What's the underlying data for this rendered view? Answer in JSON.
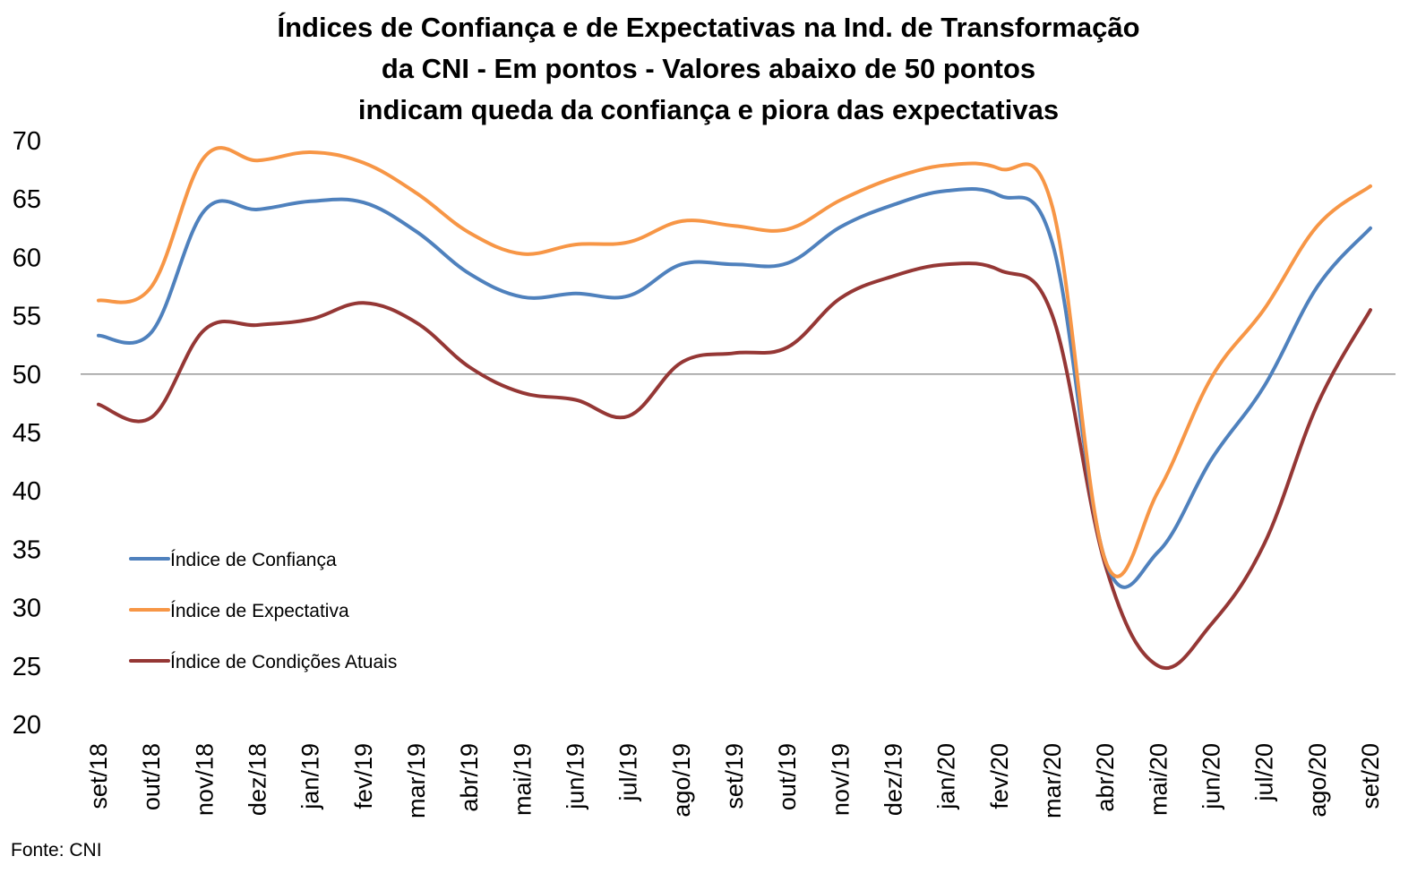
{
  "title_lines": [
    "Índices de Confiança e de Expectativas na Ind. de Transformação",
    "da CNI - Em pontos - Valores abaixo de 50 pontos",
    "indicam queda da confiança e piora das expectativas"
  ],
  "source": "Fonte: CNI",
  "chart_data": {
    "type": "line",
    "title": "Índices de Confiança e de Expectativas na Ind. de Transformação da CNI - Em pontos - Valores abaixo de 50 pontos indicam queda da confiança e piora das expectativas",
    "categories": [
      "set/18",
      "out/18",
      "nov/18",
      "dez/18",
      "jan/19",
      "fev/19",
      "mar/19",
      "abr/19",
      "mai/19",
      "jun/19",
      "jul/19",
      "ago/19",
      "set/19",
      "out/19",
      "nov/19",
      "dez/19",
      "jan/20",
      "fev/20",
      "mar/20",
      "abr/20",
      "mai/20",
      "jun/20",
      "jul/20",
      "ago/20",
      "set/20"
    ],
    "ylim": [
      20,
      70
    ],
    "yticks": [
      20,
      25,
      30,
      35,
      40,
      45,
      50,
      55,
      60,
      65,
      70
    ],
    "reference_line": 50,
    "grid": false,
    "legend_position": "left",
    "series": [
      {
        "name": "Índice de Confiança",
        "color": "#4F81BD",
        "values": [
          53.3,
          53.6,
          64.0,
          64.1,
          64.8,
          64.7,
          62.2,
          58.6,
          56.6,
          56.9,
          56.7,
          59.4,
          59.4,
          59.5,
          62.6,
          64.5,
          65.7,
          65.3,
          61.2,
          34.0,
          34.8,
          42.7,
          49.0,
          57.5,
          62.5
        ]
      },
      {
        "name": "Índice de Expectativa",
        "color": "#F79646",
        "values": [
          56.3,
          57.5,
          68.6,
          68.3,
          69.0,
          68.1,
          65.5,
          62.1,
          60.3,
          61.1,
          61.3,
          63.1,
          62.7,
          62.4,
          64.9,
          66.8,
          67.9,
          67.6,
          64.3,
          34.0,
          40.0,
          49.7,
          55.6,
          62.7,
          66.1
        ]
      },
      {
        "name": "Índice de Condições Atuais",
        "color": "#953735",
        "values": [
          47.4,
          46.3,
          53.8,
          54.2,
          54.7,
          56.1,
          54.4,
          50.6,
          48.4,
          47.8,
          46.4,
          51.0,
          51.8,
          52.3,
          56.5,
          58.4,
          59.4,
          58.9,
          55.0,
          33.6,
          25.0,
          28.6,
          35.5,
          47.4,
          55.5
        ]
      }
    ]
  }
}
